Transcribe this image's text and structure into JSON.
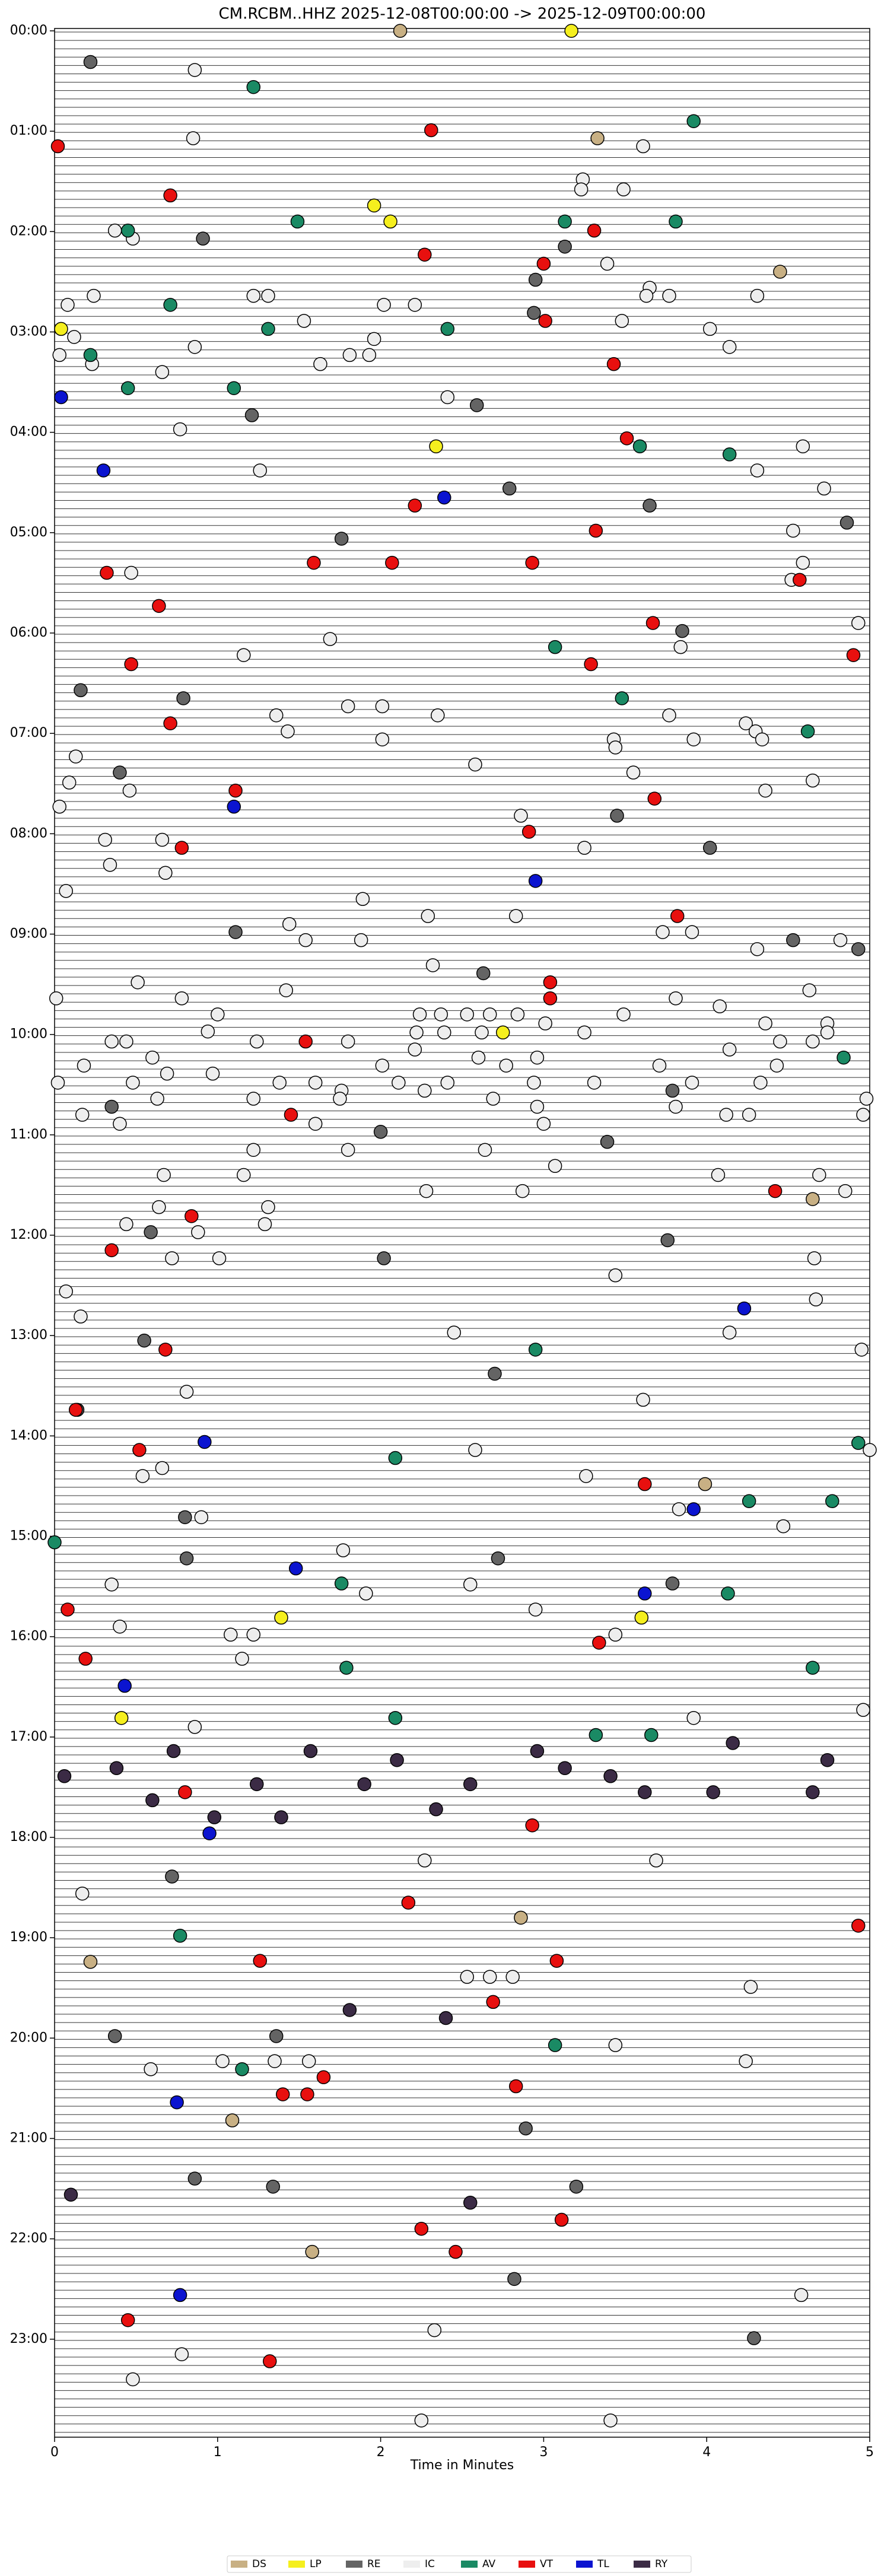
{
  "chart_data": {
    "type": "scatter",
    "title": "CM.RCBM..HHZ  2025-12-08T00:00:00 -> 2025-12-09T00:00:00",
    "x_label": "Time in Minutes",
    "xlim": [
      0,
      5
    ],
    "xticks": [
      0,
      1,
      2,
      3,
      4,
      5
    ],
    "ylim": [
      0,
      24
    ],
    "y_inverted": true,
    "yticks": [
      {
        "value": 0,
        "label": "00:00"
      },
      {
        "value": 1,
        "label": "01:00"
      },
      {
        "value": 2,
        "label": "02:00"
      },
      {
        "value": 3,
        "label": "03:00"
      },
      {
        "value": 4,
        "label": "04:00"
      },
      {
        "value": 5,
        "label": "05:00"
      },
      {
        "value": 6,
        "label": "06:00"
      },
      {
        "value": 7,
        "label": "07:00"
      },
      {
        "value": 8,
        "label": "08:00"
      },
      {
        "value": 9,
        "label": "09:00"
      },
      {
        "value": 10,
        "label": "10:00"
      },
      {
        "value": 11,
        "label": "11:00"
      },
      {
        "value": 12,
        "label": "12:00"
      },
      {
        "value": 13,
        "label": "13:00"
      },
      {
        "value": 14,
        "label": "14:00"
      },
      {
        "value": 15,
        "label": "15:00"
      },
      {
        "value": 16,
        "label": "16:00"
      },
      {
        "value": 17,
        "label": "17:00"
      },
      {
        "value": 18,
        "label": "18:00"
      },
      {
        "value": 19,
        "label": "19:00"
      },
      {
        "value": 20,
        "label": "20:00"
      },
      {
        "value": 21,
        "label": "21:00"
      },
      {
        "value": 22,
        "label": "22:00"
      },
      {
        "value": 23,
        "label": "23:00"
      }
    ],
    "legend": "bottom",
    "series": [
      {
        "name": "DS",
        "color": "#c8b084",
        "x": [
          2.12,
          3.33,
          4.45,
          4.65,
          3.99,
          2.86,
          0.22,
          1.09,
          1.58
        ],
        "values": [
          0.0,
          1.07,
          2.4,
          11.64,
          14.48,
          18.8,
          19.24,
          20.82,
          22.13
        ]
      },
      {
        "name": "LP",
        "color": "#f5ef1e",
        "x": [
          3.17,
          1.96,
          2.06,
          0.04,
          2.34,
          2.75,
          1.39,
          3.6,
          0.41
        ],
        "values": [
          0.0,
          1.74,
          1.9,
          2.97,
          4.14,
          9.98,
          15.81,
          15.81,
          16.81
        ]
      },
      {
        "name": "RE",
        "color": "#646464",
        "x": [
          0.22,
          0.91,
          3.13,
          2.95,
          2.94,
          2.59,
          1.21,
          2.79,
          1.76,
          3.65,
          4.86,
          3.85,
          0.79,
          0.16,
          0.4,
          3.45,
          4.02,
          1.11,
          4.53,
          4.93,
          2.63,
          3.79,
          0.35,
          2.0,
          3.39,
          0.59,
          3.76,
          2.02,
          0.55,
          2.7,
          0.14,
          0.8,
          0.81,
          2.72,
          3.79,
          0.72,
          1.36,
          0.37,
          2.89,
          0.86,
          1.34,
          3.2,
          2.82,
          4.29
        ],
        "values": [
          0.31,
          2.07,
          2.15,
          2.48,
          2.81,
          3.73,
          3.83,
          4.56,
          5.06,
          4.73,
          4.9,
          5.98,
          6.65,
          6.57,
          7.39,
          7.82,
          8.14,
          8.98,
          9.06,
          9.15,
          9.39,
          10.56,
          10.72,
          10.97,
          11.07,
          11.97,
          12.05,
          12.23,
          13.05,
          13.38,
          13.74,
          14.81,
          15.22,
          15.22,
          15.47,
          18.39,
          19.98,
          19.98,
          20.9,
          21.4,
          21.48,
          21.48,
          22.4,
          22.99
        ]
      },
      {
        "name": "IC",
        "color": "#eeeeee",
        "x": [
          0.86,
          0.85,
          3.61,
          3.24,
          3.23,
          3.49,
          0.37,
          0.48,
          3.39,
          3.65,
          3.63,
          3.77,
          4.31,
          0.08,
          0.24,
          1.22,
          1.31,
          2.02,
          2.21,
          1.53,
          3.48,
          4.02,
          0.12,
          0.86,
          1.96,
          1.81,
          4.14,
          0.03,
          1.93,
          0.23,
          0.66,
          1.63,
          2.41,
          0.77,
          4.59,
          1.26,
          4.31,
          4.72,
          4.53,
          4.59,
          4.52,
          0.47,
          4.93,
          1.69,
          3.84,
          1.16,
          1.36,
          1.8,
          2.01,
          2.35,
          3.77,
          4.24,
          1.43,
          3.92,
          4.3,
          2.01,
          3.43,
          4.34,
          0.13,
          3.44,
          2.58,
          0.09,
          3.55,
          4.65,
          0.46,
          4.36,
          0.03,
          2.86,
          3.25,
          0.31,
          0.66,
          0.34,
          0.68,
          0.07,
          1.89,
          2.29,
          2.83,
          1.44,
          1.54,
          1.88,
          3.73,
          3.91,
          4.31,
          4.82,
          2.32,
          0.51,
          4.63,
          0.01,
          0.78,
          1.42,
          3.81,
          4.08,
          1.0,
          2.24,
          2.37,
          2.53,
          2.67,
          2.84,
          3.01,
          3.49,
          4.36,
          4.74,
          0.94,
          2.22,
          2.39,
          2.62,
          3.25,
          4.74,
          4.65,
          0.35,
          0.44,
          1.24,
          1.8,
          2.21,
          2.6,
          4.14,
          4.45,
          0.6,
          0.18,
          2.01,
          2.77,
          2.96,
          3.71,
          4.43,
          1.76,
          0.02,
          0.48,
          0.69,
          0.97,
          1.38,
          1.6,
          2.11,
          2.27,
          2.41,
          2.94,
          3.31,
          3.91,
          4.33,
          4.98,
          0.63,
          1.22,
          1.75,
          2.69,
          2.96,
          3.81,
          4.12,
          4.26,
          0.17,
          0.4,
          1.6,
          3.0,
          4.96,
          1.22,
          1.8,
          2.64,
          3.07,
          0.67,
          1.16,
          4.07,
          4.69,
          2.28,
          2.87,
          0.64,
          1.31,
          4.85,
          0.44,
          0.88,
          1.29,
          0.72,
          1.01,
          4.66,
          3.44,
          0.07,
          0.16,
          4.67,
          4.95,
          2.45,
          4.14,
          0.81,
          3.61,
          5.0,
          2.58,
          0.66,
          0.54,
          3.26,
          0.9,
          3.83,
          4.47,
          1.77,
          0.35,
          1.91,
          2.55,
          2.95,
          0.4,
          1.08,
          1.22,
          3.44,
          1.15,
          4.96,
          0.86,
          3.92,
          2.27,
          3.69,
          0.17,
          4.27,
          2.53,
          2.67,
          2.81,
          1.03,
          1.35,
          1.56,
          3.44,
          4.24,
          0.59,
          4.58,
          2.33,
          0.78,
          0.48,
          2.25,
          3.41
        ],
        "values": [
          0.39,
          1.07,
          1.15,
          1.48,
          1.58,
          1.58,
          1.99,
          2.07,
          2.32,
          2.56,
          2.64,
          2.64,
          2.64,
          2.73,
          2.64,
          2.64,
          2.64,
          2.73,
          2.73,
          2.89,
          2.89,
          2.97,
          3.05,
          3.15,
          3.07,
          3.23,
          3.15,
          3.23,
          3.23,
          3.32,
          3.4,
          3.32,
          3.65,
          3.97,
          4.14,
          4.38,
          4.38,
          4.56,
          4.98,
          5.3,
          5.47,
          5.4,
          5.9,
          6.06,
          6.14,
          6.22,
          6.82,
          6.73,
          6.73,
          6.82,
          6.82,
          6.9,
          6.98,
          7.06,
          6.98,
          7.06,
          7.06,
          7.06,
          7.23,
          7.14,
          7.31,
          7.49,
          7.39,
          7.47,
          7.57,
          7.57,
          7.73,
          7.82,
          8.14,
          8.06,
          8.06,
          8.31,
          8.39,
          8.57,
          8.65,
          8.82,
          8.82,
          8.9,
          9.06,
          9.06,
          8.98,
          8.98,
          9.15,
          9.06,
          9.31,
          9.48,
          9.56,
          9.64,
          9.64,
          9.56,
          9.64,
          9.72,
          9.8,
          9.8,
          9.8,
          9.8,
          9.8,
          9.8,
          9.89,
          9.8,
          9.89,
          9.89,
          9.97,
          9.98,
          9.98,
          9.98,
          9.98,
          9.98,
          10.07,
          10.07,
          10.07,
          10.07,
          10.07,
          10.15,
          10.23,
          10.15,
          10.07,
          10.23,
          10.31,
          10.31,
          10.31,
          10.23,
          10.31,
          10.31,
          10.56,
          10.48,
          10.48,
          10.39,
          10.39,
          10.48,
          10.48,
          10.48,
          10.56,
          10.48,
          10.48,
          10.48,
          10.48,
          10.48,
          10.64,
          10.64,
          10.64,
          10.64,
          10.64,
          10.72,
          10.72,
          10.8,
          10.8,
          10.8,
          10.89,
          10.89,
          10.89,
          10.8,
          11.15,
          11.15,
          11.15,
          11.31,
          11.4,
          11.4,
          11.4,
          11.4,
          11.56,
          11.56,
          11.72,
          11.72,
          11.56,
          11.89,
          11.97,
          11.89,
          12.23,
          12.23,
          12.23,
          12.4,
          12.56,
          12.81,
          12.64,
          13.14,
          12.97,
          12.97,
          13.56,
          13.64,
          14.14,
          14.14,
          14.32,
          14.4,
          14.4,
          14.81,
          14.73,
          14.9,
          15.14,
          15.48,
          15.57,
          15.48,
          15.73,
          15.9,
          15.98,
          15.98,
          15.98,
          16.22,
          16.73,
          16.9,
          16.81,
          18.23,
          18.23,
          18.56,
          19.49,
          19.39,
          19.39,
          19.39,
          20.23,
          20.23,
          20.23,
          20.07,
          20.23,
          20.31,
          22.56,
          22.91,
          23.15,
          23.4,
          23.81,
          23.81
        ]
      },
      {
        "name": "AV",
        "color": "#1a8a64",
        "x": [
          1.22,
          3.92,
          0.45,
          1.49,
          3.13,
          3.81,
          0.71,
          1.31,
          2.41,
          0.22,
          0.45,
          1.1,
          3.59,
          4.14,
          3.07,
          3.48,
          4.62,
          4.84,
          2.95,
          2.09,
          4.26,
          4.77,
          0,
          1.76,
          4.13,
          1.79,
          4.65,
          2.09,
          3.32,
          3.66,
          0.77,
          1.15,
          3.07,
          4.93
        ],
        "values": [
          0.56,
          0.9,
          1.99,
          1.9,
          1.9,
          1.9,
          2.73,
          2.97,
          2.97,
          3.23,
          3.56,
          3.56,
          4.14,
          4.22,
          6.14,
          6.65,
          6.98,
          10.23,
          13.14,
          14.22,
          14.65,
          14.65,
          15.06,
          15.47,
          15.57,
          16.31,
          16.31,
          16.81,
          16.98,
          16.98,
          18.98,
          20.31,
          20.07,
          14.07
        ]
      },
      {
        "name": "VT",
        "color": "#e8100f",
        "x": [
          2.31,
          0.02,
          0.71,
          3.31,
          2.27,
          3.0,
          3.01,
          3.43,
          3.51,
          2.21,
          3.32,
          1.59,
          2.07,
          2.93,
          0.32,
          4.57,
          0.64,
          3.67,
          0.47,
          3.29,
          4.9,
          0.71,
          1.11,
          3.68,
          0.78,
          2.91,
          3.82,
          3.04,
          3.04,
          1.54,
          1.45,
          4.42,
          0.84,
          0.35,
          0.68,
          0.13,
          0.52,
          3.62,
          0.08,
          0.19,
          3.34,
          0.8,
          2.93,
          2.17,
          1.26,
          3.08,
          4.93,
          2.69,
          1.65,
          1.4,
          1.55,
          2.83,
          2.25,
          3.11,
          2.46,
          0.45,
          1.32
        ],
        "values": [
          0.99,
          1.15,
          1.64,
          1.99,
          2.23,
          2.32,
          2.89,
          3.32,
          4.06,
          4.73,
          4.98,
          5.3,
          5.3,
          5.3,
          5.4,
          5.47,
          5.73,
          5.9,
          6.31,
          6.31,
          6.22,
          6.9,
          7.57,
          7.65,
          8.14,
          7.98,
          8.82,
          9.48,
          9.64,
          10.07,
          10.8,
          11.56,
          11.81,
          12.15,
          13.14,
          13.74,
          14.14,
          14.48,
          15.73,
          16.22,
          16.06,
          17.55,
          17.88,
          18.65,
          19.23,
          19.23,
          18.88,
          19.64,
          20.39,
          20.56,
          20.56,
          20.48,
          21.9,
          21.81,
          22.13,
          22.81,
          23.22
        ]
      },
      {
        "name": "TL",
        "color": "#0b14d0",
        "x": [
          0.04,
          2.39,
          0.3,
          2.95,
          1.1,
          0.92,
          4.23,
          3.92,
          1.48,
          3.62,
          0.43,
          0.75,
          0.95,
          0.77
        ],
        "values": [
          3.65,
          4.65,
          4.38,
          8.47,
          7.73,
          14.06,
          12.73,
          14.73,
          15.32,
          15.57,
          16.49,
          20.64,
          17.96,
          22.56
        ]
      },
      {
        "name": "RY",
        "color": "#3b2b45",
        "x": [
          0.06,
          0.73,
          1.57,
          2.96,
          4.16,
          4.74,
          0.38,
          2.1,
          1.24,
          1.9,
          2.55,
          3.13,
          3.41,
          3.62,
          4.04,
          4.65,
          0.6,
          2.34,
          0.98,
          1.39,
          1.81,
          2.4,
          0.1,
          2.55
        ],
        "values": [
          17.39,
          17.14,
          17.14,
          17.14,
          17.06,
          17.23,
          17.31,
          17.23,
          17.47,
          17.47,
          17.47,
          17.31,
          17.39,
          17.55,
          17.55,
          17.55,
          17.63,
          17.72,
          17.8,
          17.8,
          19.72,
          19.8,
          21.56,
          21.64
        ]
      }
    ]
  }
}
